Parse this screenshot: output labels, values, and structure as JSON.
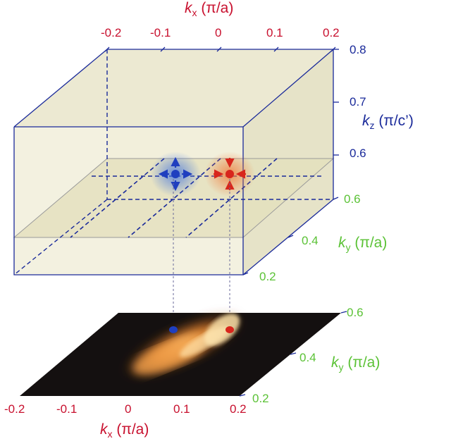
{
  "box": {
    "kx_axis": {
      "label_var": "k",
      "label_sub": "x",
      "label_unit": " (π/a)",
      "ticks": [
        "-0.2",
        "-0.1",
        "0",
        "0.1",
        "0.2"
      ]
    },
    "kz_axis": {
      "label_var": "k",
      "label_sub": "z",
      "label_unit": " (π/c’)",
      "ticks": [
        "0.8",
        "0.7",
        "0.6"
      ]
    },
    "ky_axis": {
      "label_var": "k",
      "label_sub": "y",
      "label_unit": " (π/a)",
      "ticks": [
        "0.6",
        "0.4",
        "0.2"
      ]
    },
    "weyl_points": [
      {
        "chirality": "source",
        "color": "#1f3fbf"
      },
      {
        "chirality": "sink",
        "color": "#d8261c"
      }
    ]
  },
  "slice": {
    "kx_axis": {
      "label_var": "k",
      "label_sub": "x",
      "label_unit": " (π/a)",
      "ticks": [
        "-0.2",
        "-0.1",
        "0",
        "0.1",
        "0.2"
      ]
    },
    "ky_axis": {
      "label_var": "k",
      "label_sub": "y",
      "label_unit": " (π/a)",
      "ticks": [
        "0.6",
        "0.4",
        "0.2"
      ]
    }
  },
  "colors": {
    "box_edge": "#1a2a9a",
    "box_fill": "#efecd6",
    "kx_color": "#c8102e",
    "kz_color": "#1a2a9a",
    "ky_color": "#5bc236"
  }
}
